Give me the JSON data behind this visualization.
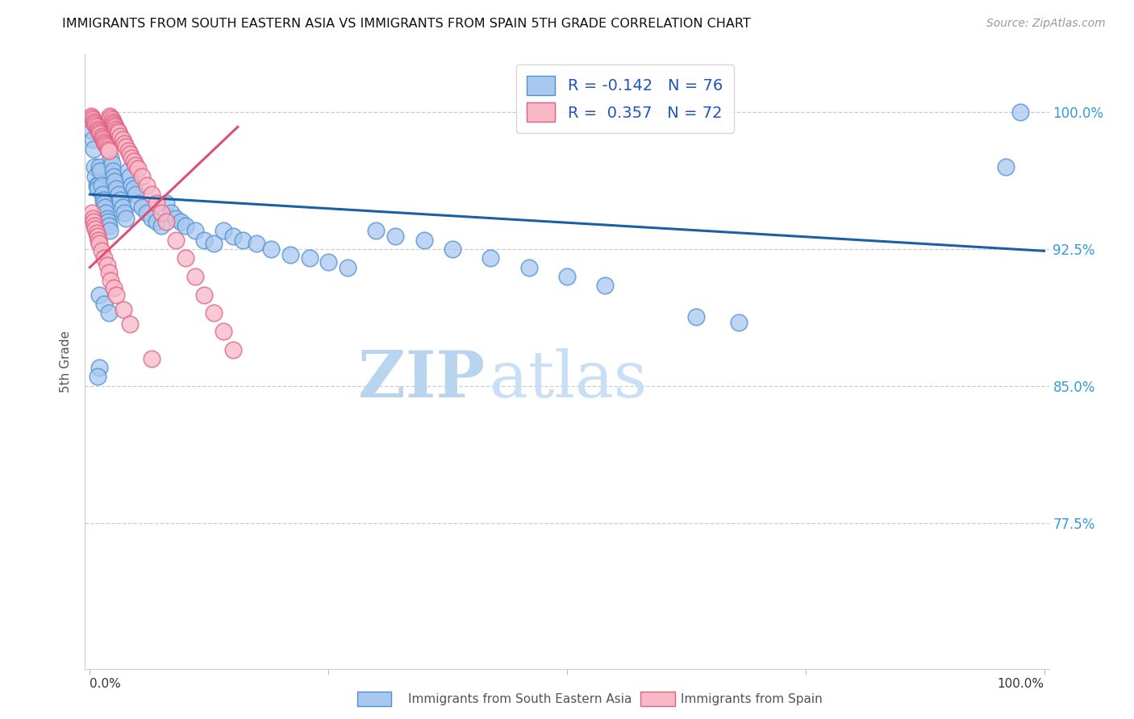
{
  "title": "IMMIGRANTS FROM SOUTH EASTERN ASIA VS IMMIGRANTS FROM SPAIN 5TH GRADE CORRELATION CHART",
  "source": "Source: ZipAtlas.com",
  "ylabel": "5th Grade",
  "ytick_vals": [
    0.775,
    0.85,
    0.925,
    1.0
  ],
  "ytick_labels": [
    "77.5%",
    "85.0%",
    "92.5%",
    "100.0%"
  ],
  "ymin": 0.695,
  "ymax": 1.032,
  "xmin": -0.005,
  "xmax": 1.005,
  "R_blue": -0.142,
  "N_blue": 76,
  "R_pink": 0.357,
  "N_pink": 72,
  "blue_color": "#a8c8f0",
  "blue_edge_color": "#5090d0",
  "pink_color": "#f8b8c8",
  "pink_edge_color": "#e06080",
  "blue_line_color": "#1a5fa8",
  "pink_line_color": "#e05070",
  "watermark_zip": "ZIP",
  "watermark_atlas": "atlas",
  "legend_label_blue": "Immigrants from South Eastern Asia",
  "legend_label_pink": "Immigrants from Spain",
  "blue_line_x0": 0.0,
  "blue_line_y0": 0.955,
  "blue_line_x1": 1.0,
  "blue_line_y1": 0.924,
  "pink_line_x0": 0.0,
  "pink_line_y0": 0.915,
  "pink_line_x1": 0.155,
  "pink_line_y1": 0.992,
  "blue_x": [
    0.002,
    0.003,
    0.004,
    0.005,
    0.006,
    0.007,
    0.008,
    0.008,
    0.01,
    0.011,
    0.012,
    0.013,
    0.014,
    0.015,
    0.016,
    0.017,
    0.018,
    0.019,
    0.02,
    0.021,
    0.022,
    0.023,
    0.024,
    0.025,
    0.026,
    0.028,
    0.03,
    0.032,
    0.034,
    0.036,
    0.038,
    0.04,
    0.042,
    0.044,
    0.046,
    0.048,
    0.05,
    0.055,
    0.06,
    0.065,
    0.07,
    0.075,
    0.08,
    0.085,
    0.09,
    0.095,
    0.1,
    0.11,
    0.12,
    0.13,
    0.14,
    0.15,
    0.16,
    0.175,
    0.19,
    0.21,
    0.23,
    0.25,
    0.27,
    0.3,
    0.32,
    0.35,
    0.38,
    0.42,
    0.46,
    0.5,
    0.54,
    0.01,
    0.015,
    0.02,
    0.635,
    0.68,
    0.96,
    0.975,
    0.01,
    0.008
  ],
  "blue_y": [
    0.99,
    0.985,
    0.98,
    0.97,
    0.965,
    0.96,
    0.96,
    0.958,
    0.97,
    0.968,
    0.96,
    0.955,
    0.952,
    0.95,
    0.948,
    0.945,
    0.942,
    0.94,
    0.938,
    0.935,
    0.975,
    0.972,
    0.968,
    0.965,
    0.962,
    0.958,
    0.955,
    0.952,
    0.948,
    0.945,
    0.942,
    0.968,
    0.965,
    0.96,
    0.958,
    0.955,
    0.95,
    0.948,
    0.945,
    0.942,
    0.94,
    0.938,
    0.95,
    0.945,
    0.942,
    0.94,
    0.938,
    0.935,
    0.93,
    0.928,
    0.935,
    0.932,
    0.93,
    0.928,
    0.925,
    0.922,
    0.92,
    0.918,
    0.915,
    0.935,
    0.932,
    0.93,
    0.925,
    0.92,
    0.915,
    0.91,
    0.905,
    0.9,
    0.895,
    0.89,
    0.888,
    0.885,
    0.97,
    1.0,
    0.86,
    0.855
  ],
  "pink_x": [
    0.001,
    0.002,
    0.003,
    0.004,
    0.005,
    0.006,
    0.007,
    0.008,
    0.009,
    0.01,
    0.011,
    0.012,
    0.013,
    0.014,
    0.015,
    0.016,
    0.017,
    0.018,
    0.019,
    0.02,
    0.021,
    0.022,
    0.023,
    0.024,
    0.025,
    0.026,
    0.027,
    0.028,
    0.029,
    0.03,
    0.032,
    0.034,
    0.036,
    0.038,
    0.04,
    0.042,
    0.044,
    0.046,
    0.048,
    0.05,
    0.055,
    0.06,
    0.065,
    0.07,
    0.075,
    0.08,
    0.09,
    0.1,
    0.11,
    0.12,
    0.13,
    0.14,
    0.15,
    0.002,
    0.003,
    0.004,
    0.005,
    0.006,
    0.007,
    0.008,
    0.009,
    0.01,
    0.012,
    0.015,
    0.018,
    0.02,
    0.022,
    0.025,
    0.028,
    0.035,
    0.042,
    0.065
  ],
  "pink_y": [
    0.998,
    0.997,
    0.996,
    0.995,
    0.994,
    0.993,
    0.992,
    0.991,
    0.99,
    0.989,
    0.988,
    0.987,
    0.986,
    0.985,
    0.984,
    0.983,
    0.982,
    0.981,
    0.98,
    0.979,
    0.998,
    0.997,
    0.996,
    0.995,
    0.994,
    0.993,
    0.992,
    0.991,
    0.99,
    0.989,
    0.987,
    0.985,
    0.983,
    0.981,
    0.979,
    0.977,
    0.975,
    0.973,
    0.971,
    0.969,
    0.965,
    0.96,
    0.955,
    0.95,
    0.945,
    0.94,
    0.93,
    0.92,
    0.91,
    0.9,
    0.89,
    0.88,
    0.87,
    0.945,
    0.942,
    0.94,
    0.938,
    0.936,
    0.934,
    0.932,
    0.93,
    0.928,
    0.924,
    0.92,
    0.916,
    0.912,
    0.908,
    0.904,
    0.9,
    0.892,
    0.884,
    0.865
  ]
}
